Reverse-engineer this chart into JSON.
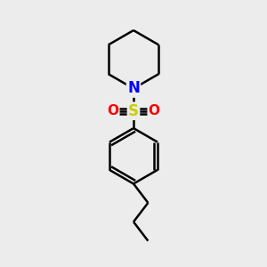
{
  "bg_color": "#ececec",
  "bond_color": "#000000",
  "bond_width": 1.8,
  "N_color": "#0000ff",
  "S_color": "#cccc00",
  "O_color": "#ff0000",
  "figsize": [
    3.0,
    3.0
  ],
  "dpi": 100,
  "xlim": [
    0,
    10
  ],
  "ylim": [
    0,
    10
  ]
}
